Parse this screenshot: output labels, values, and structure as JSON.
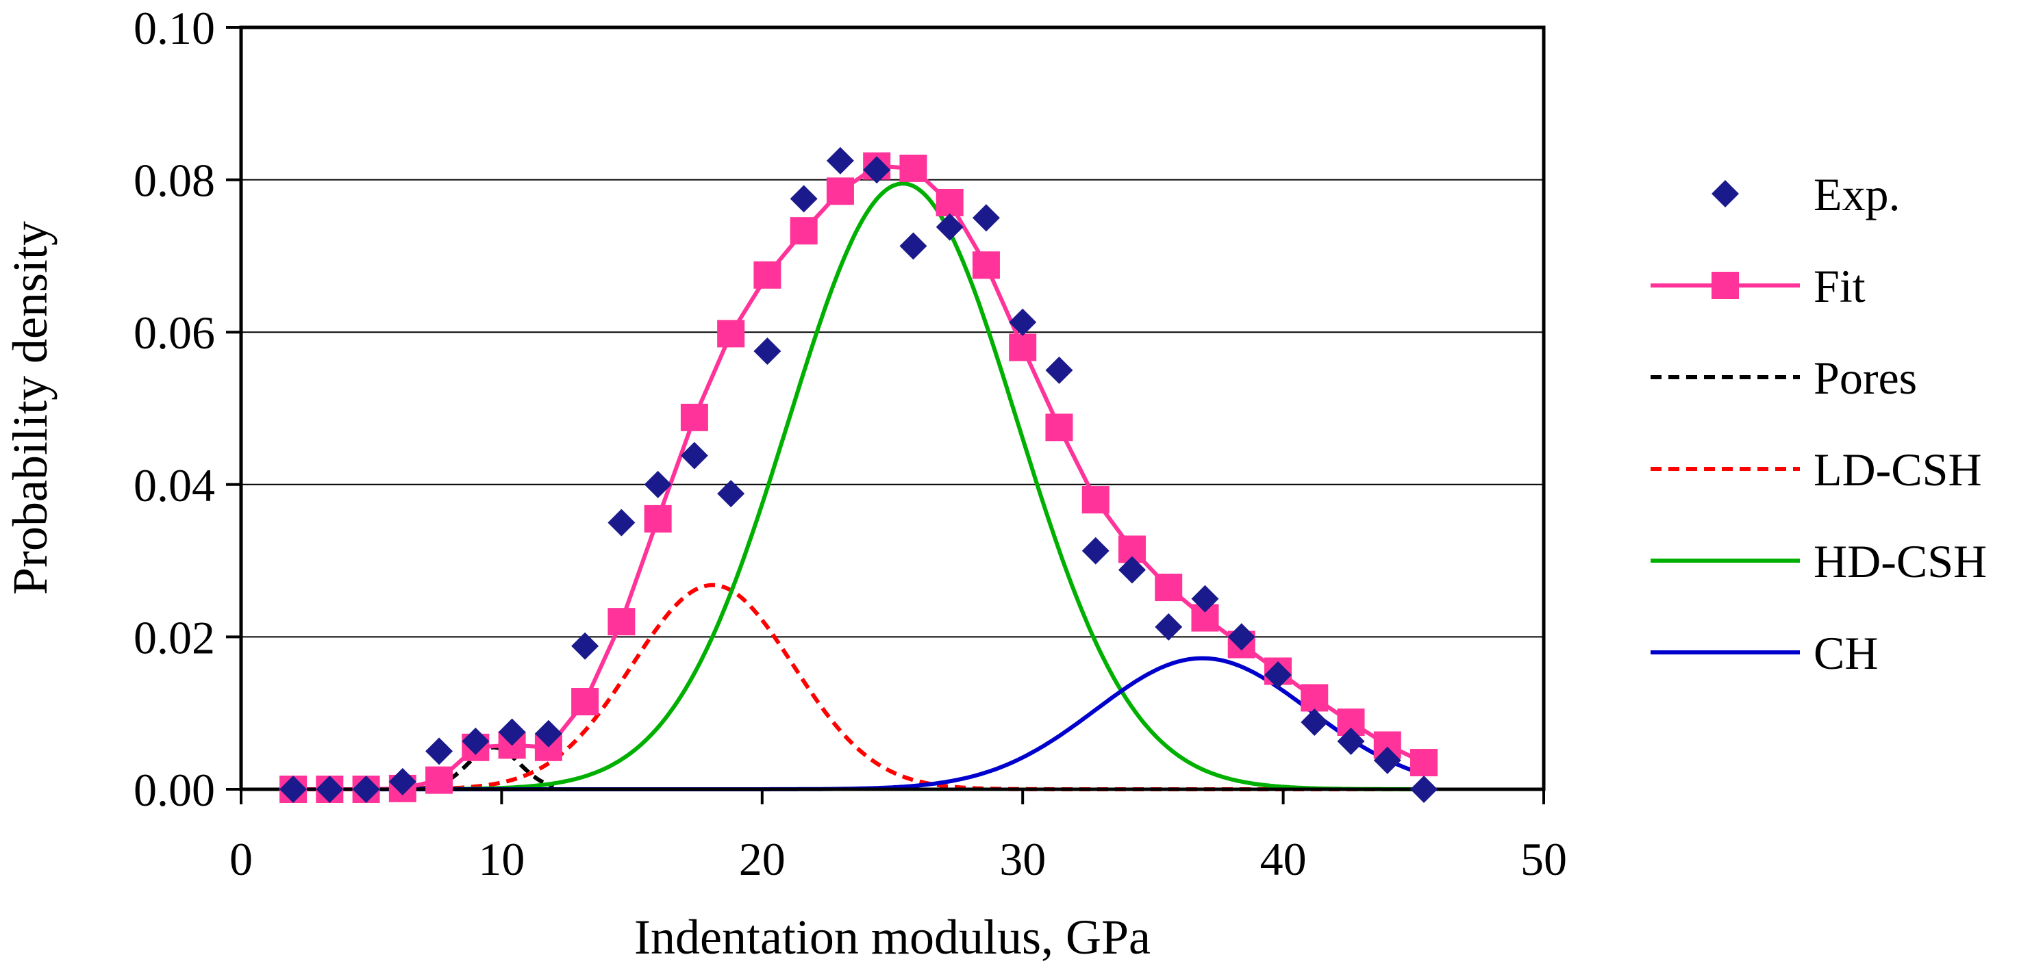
{
  "chart_data": {
    "type": "line",
    "title": "",
    "xlabel": "Indentation modulus, GPa",
    "ylabel": "Probability density",
    "xlim": [
      0,
      50
    ],
    "ylim": [
      0,
      0.1
    ],
    "xticks": [
      0,
      10,
      20,
      30,
      40,
      50
    ],
    "yticks": [
      0,
      0.02,
      0.04,
      0.06,
      0.08,
      0.1
    ],
    "xtick_labels": [
      "0",
      "10",
      "20",
      "30",
      "40",
      "50"
    ],
    "ytick_labels": [
      "0.00",
      "0.02",
      "0.04",
      "0.06",
      "0.08",
      "0.10"
    ],
    "grid": "horizontal",
    "legend_position": "right",
    "series": [
      {
        "name": "Exp.",
        "kind": "scatter",
        "marker": "diamond",
        "color": "#1a1a8c",
        "x": [
          2.0,
          3.4,
          4.8,
          6.2,
          7.6,
          9.0,
          10.4,
          11.8,
          13.2,
          14.6,
          16.0,
          17.4,
          18.8,
          20.2,
          21.6,
          23.0,
          24.4,
          25.8,
          27.2,
          28.6,
          30.0,
          31.4,
          32.8,
          34.2,
          35.6,
          37.0,
          38.4,
          39.8,
          41.2,
          42.6,
          44.0,
          45.4
        ],
        "y": [
          0.0,
          0.0,
          0.0,
          0.001,
          0.005,
          0.0063,
          0.0075,
          0.0073,
          0.0188,
          0.035,
          0.04,
          0.0438,
          0.0388,
          0.0575,
          0.0775,
          0.0825,
          0.0813,
          0.0713,
          0.0738,
          0.075,
          0.0613,
          0.055,
          0.0313,
          0.0288,
          0.0213,
          0.025,
          0.02,
          0.015,
          0.0088,
          0.0063,
          0.0038,
          0.0
        ]
      },
      {
        "name": "Fit",
        "kind": "line-marker",
        "marker": "square",
        "color": "#ff3399",
        "marker_color": "#ff3399",
        "x": [
          2.0,
          3.4,
          4.8,
          6.2,
          7.6,
          9.0,
          10.4,
          11.8,
          13.2,
          14.6,
          16.0,
          17.4,
          18.8,
          20.2,
          21.6,
          23.0,
          24.4,
          25.8,
          27.2,
          28.6,
          30.0,
          31.4,
          32.8,
          34.2,
          35.6,
          37.0,
          38.4,
          39.8,
          41.2,
          42.6,
          44.0,
          45.4
        ],
        "y": [
          0.0,
          0.0,
          0.0,
          0.0001,
          0.0012,
          0.0055,
          0.0058,
          0.0055,
          0.0115,
          0.022,
          0.0355,
          0.0488,
          0.0598,
          0.0675,
          0.0733,
          0.0785,
          0.0818,
          0.0815,
          0.077,
          0.0688,
          0.058,
          0.0475,
          0.038,
          0.0315,
          0.0265,
          0.0225,
          0.019,
          0.0155,
          0.012,
          0.0088,
          0.0058,
          0.0035
        ]
      },
      {
        "name": "Pores",
        "kind": "curve",
        "dash": "dashed",
        "color": "#000000",
        "gaussian": {
          "amplitude": 0.0055,
          "mean": 9.7,
          "sd": 1.0
        },
        "x_range": [
          6,
          12
        ]
      },
      {
        "name": "LD-CSH",
        "kind": "curve",
        "dash": "dashed",
        "color": "#ff0000",
        "gaussian": {
          "amplitude": 0.0268,
          "mean": 18.1,
          "sd": 3.1
        },
        "x_range": [
          2,
          45
        ]
      },
      {
        "name": "HD-CSH",
        "kind": "curve",
        "dash": "solid",
        "color": "#00b000",
        "gaussian": {
          "amplitude": 0.0795,
          "mean": 25.4,
          "sd": 4.4
        },
        "x_range": [
          2,
          45
        ]
      },
      {
        "name": "CH",
        "kind": "curve",
        "dash": "solid",
        "color": "#0000cc",
        "gaussian": {
          "amplitude": 0.0172,
          "mean": 36.9,
          "sd": 4.1
        },
        "x_range": [
          2,
          45.4
        ]
      }
    ]
  }
}
